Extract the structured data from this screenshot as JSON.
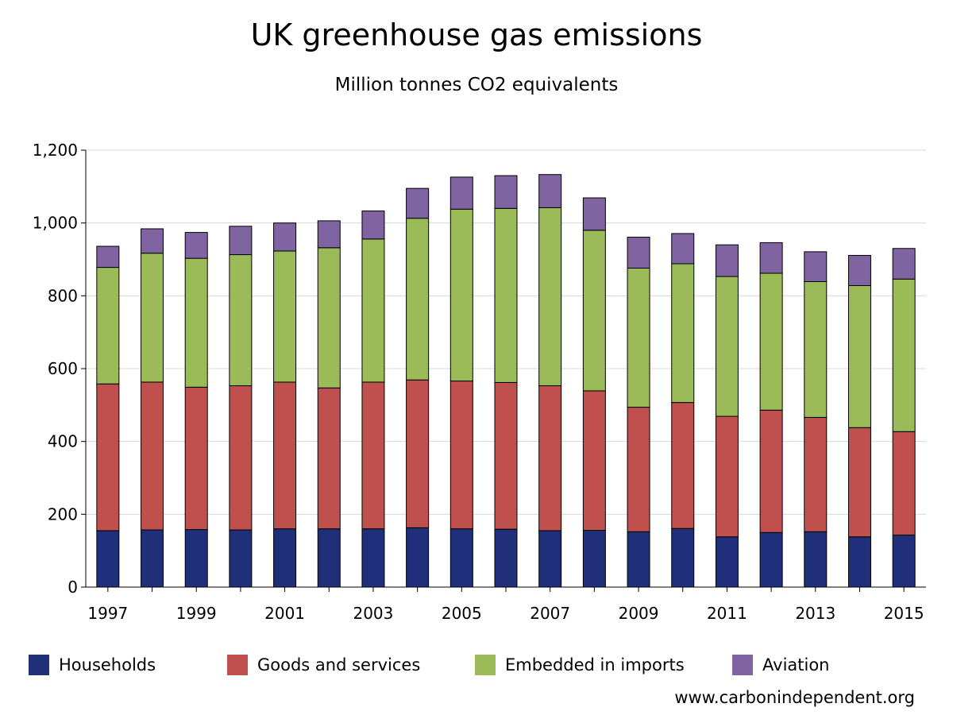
{
  "chart_data": {
    "type": "bar",
    "stacked": true,
    "title": "UK greenhouse gas emissions",
    "subtitle": "Million tonnes CO2 equivalents",
    "xlabel": "",
    "ylabel": "",
    "ylim": [
      0,
      1200
    ],
    "yticks": [
      0,
      200,
      400,
      600,
      800,
      1000,
      1200
    ],
    "ytick_labels": [
      "0",
      "200",
      "400",
      "600",
      "800",
      "1,000",
      "1,200"
    ],
    "categories": [
      "1997",
      "1998",
      "1999",
      "2000",
      "2001",
      "2002",
      "2003",
      "2004",
      "2005",
      "2006",
      "2007",
      "2008",
      "2009",
      "2010",
      "2011",
      "2012",
      "2013",
      "2014",
      "2015"
    ],
    "xtick_labels": [
      "1997",
      "",
      "1999",
      "",
      "2001",
      "",
      "2003",
      "",
      "2005",
      "",
      "2007",
      "",
      "2009",
      "",
      "2011",
      "",
      "2013",
      "",
      "2015"
    ],
    "grid": true,
    "legend_position": "bottom",
    "series": [
      {
        "name": "Households",
        "color": "#1f2f7a",
        "values": [
          155,
          157,
          158,
          157,
          160,
          160,
          160,
          163,
          160,
          159,
          155,
          156,
          152,
          161,
          138,
          150,
          152,
          138,
          143
        ]
      },
      {
        "name": "Goods and services",
        "color": "#c0504d",
        "values": [
          403,
          406,
          391,
          396,
          403,
          387,
          403,
          406,
          406,
          403,
          398,
          383,
          342,
          346,
          331,
          336,
          314,
          300,
          284
        ]
      },
      {
        "name": "Embedded in imports",
        "color": "#9bbb59",
        "values": [
          320,
          354,
          354,
          360,
          360,
          385,
          393,
          444,
          472,
          478,
          489,
          441,
          382,
          381,
          384,
          376,
          373,
          390,
          419
        ]
      },
      {
        "name": "Aviation",
        "color": "#8064a2",
        "values": [
          58,
          67,
          71,
          78,
          77,
          74,
          77,
          82,
          88,
          90,
          91,
          89,
          85,
          83,
          87,
          84,
          82,
          83,
          84
        ]
      }
    ]
  },
  "source": "www.carbonindependent.org"
}
